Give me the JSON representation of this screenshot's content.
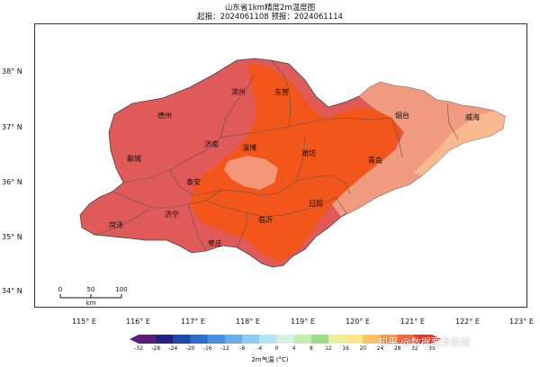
{
  "title_line1": "山东省1km精度2m温度图",
  "title_line2": "起报：2024061108 预报：2024061114",
  "lon_ticks": [
    "115° E",
    "116° E",
    "117° E",
    "118° E",
    "119° E",
    "120° E",
    "121° E",
    "122° E",
    "123° E"
  ],
  "lat_ticks": [
    "38° N",
    "37° N",
    "36° N",
    "35° N",
    "34° N"
  ],
  "cities": [
    "滨州",
    "东营",
    "德州",
    "烟台",
    "威海",
    "济南",
    "淄博",
    "潍坊",
    "聊城",
    "青岛",
    "泰安",
    "日照",
    "济宁",
    "临沂",
    "菏泽",
    "枣庄"
  ],
  "scale_bar": {
    "labels": [
      "0",
      "50",
      "100"
    ],
    "unit": "km"
  },
  "colorbar": {
    "ticks": [
      "-32",
      "-28",
      "-24",
      "-20",
      "-16",
      "-12",
      "-8",
      "-4",
      "0",
      "4",
      "8",
      "12",
      "16",
      "20",
      "24",
      "28",
      "32",
      "35"
    ],
    "title": "2m气温 (°C)",
    "colors": [
      "#5b1e77",
      "#23237f",
      "#1f4aa8",
      "#2f6fc8",
      "#4b8fdc",
      "#6aaee8",
      "#8ecdf2",
      "#b4e2f6",
      "#d8f2e0",
      "#c6ecb0",
      "#9fdc8a",
      "#e8f0a0",
      "#fde58a",
      "#fcc46a",
      "#f99a55",
      "#ef6a3e",
      "#e23b2a"
    ]
  },
  "watermark": "知乎 @数据要素商城",
  "colors": {
    "hot": "#f05a1a",
    "warm": "#e06060",
    "mild": "#f08a78",
    "cool": "#f8b088",
    "border": "#555555"
  }
}
